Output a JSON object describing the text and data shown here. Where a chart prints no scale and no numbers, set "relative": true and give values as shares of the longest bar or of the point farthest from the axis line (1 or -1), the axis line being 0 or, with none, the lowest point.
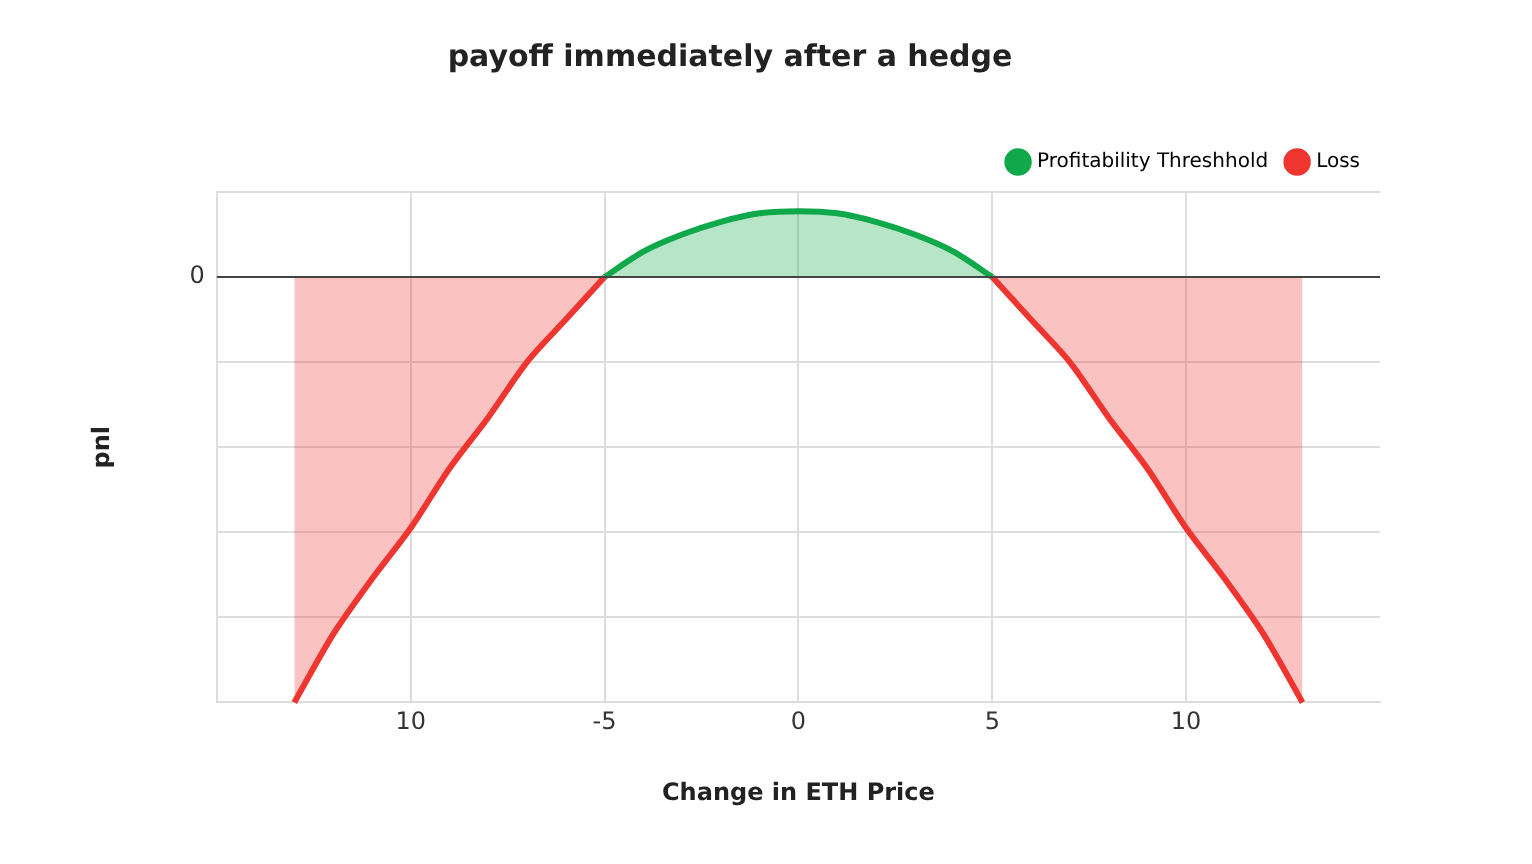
{
  "chart_data": {
    "type": "area",
    "title": "payoff immediately after a hedge",
    "xlabel": "Change in ETH Price",
    "ylabel": "pnl",
    "relative": true,
    "xlim": [
      -15,
      15
    ],
    "xticks": [
      {
        "value": -10,
        "label": "10"
      },
      -5,
      0,
      5,
      10
    ],
    "series": [
      {
        "name": "Profitability Threshhold",
        "color": "#0fa84a",
        "x": [
          -5,
          -4,
          -3,
          -2,
          -1,
          0,
          1,
          2,
          3,
          4,
          5
        ],
        "values": [
          0,
          0.06,
          0.1,
          0.13,
          0.15,
          0.155,
          0.15,
          0.13,
          0.1,
          0.06,
          0
        ]
      },
      {
        "name": "Loss",
        "color": "#ee3530",
        "x": [
          -13,
          -12,
          -11,
          -10,
          -9,
          -8,
          -7,
          -6,
          -5,
          0,
          5,
          6,
          7,
          8,
          9,
          10,
          11,
          12,
          13
        ],
        "values": [
          -1,
          -0.84,
          -0.71,
          -0.59,
          -0.45,
          -0.33,
          -0.2,
          -0.1,
          0,
          null,
          0,
          -0.1,
          -0.2,
          -0.33,
          -0.45,
          -0.59,
          -0.71,
          -0.84,
          -1
        ]
      }
    ],
    "ref_lines": [
      {
        "axis": "y",
        "value": 0,
        "label": "0",
        "color": "#444444"
      }
    ],
    "grid": true,
    "legend": "top right"
  }
}
